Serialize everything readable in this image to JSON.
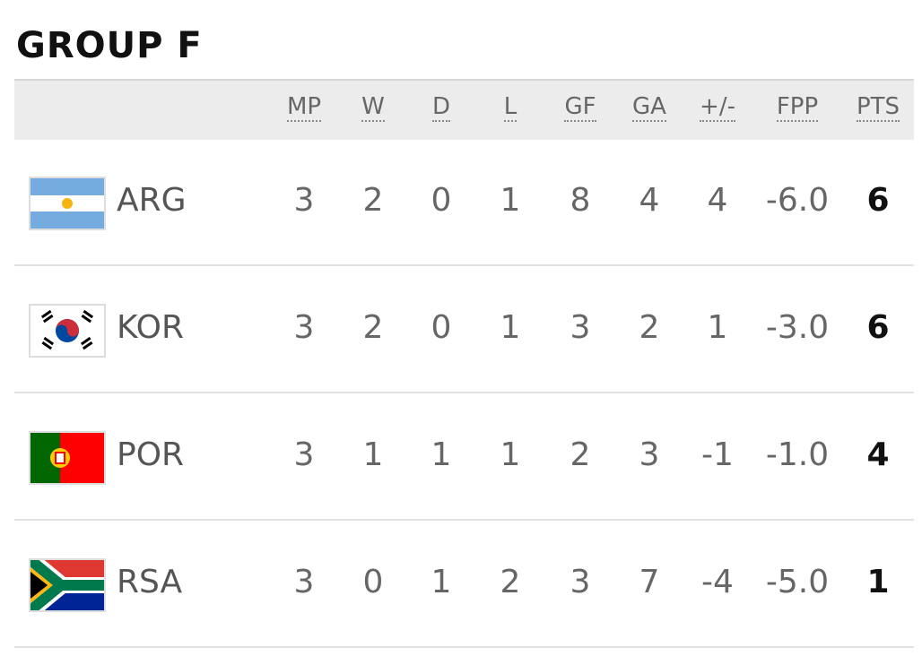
{
  "title": "GROUP F",
  "table": {
    "headers": [
      "MP",
      "W",
      "D",
      "L",
      "GF",
      "GA",
      "+/-",
      "FPP",
      "PTS"
    ],
    "rows": [
      {
        "team": "ARG",
        "cells": [
          "3",
          "2",
          "0",
          "1",
          "8",
          "4",
          "4",
          "-6.0",
          "6"
        ]
      },
      {
        "team": "KOR",
        "cells": [
          "3",
          "2",
          "0",
          "1",
          "3",
          "2",
          "1",
          "-3.0",
          "6"
        ]
      },
      {
        "team": "POR",
        "cells": [
          "3",
          "1",
          "1",
          "1",
          "2",
          "3",
          "-1",
          "-1.0",
          "4"
        ]
      },
      {
        "team": "RSA",
        "cells": [
          "3",
          "0",
          "1",
          "2",
          "3",
          "7",
          "-4",
          "-5.0",
          "1"
        ]
      }
    ]
  }
}
